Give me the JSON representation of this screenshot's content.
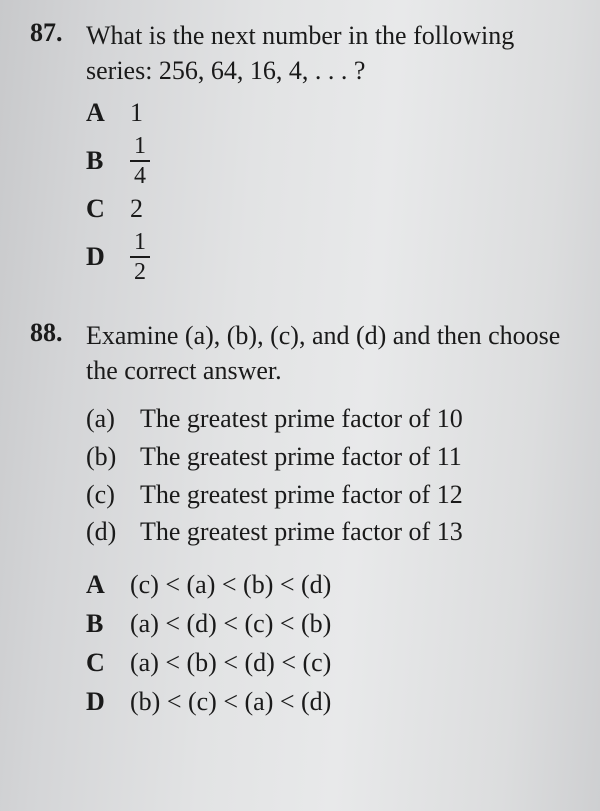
{
  "q87": {
    "number": "87.",
    "text": "What is the next number in the following series: 256, 64, 16, 4, . . . ?",
    "options": {
      "A": {
        "letter": "A",
        "type": "plain",
        "value": "1"
      },
      "B": {
        "letter": "B",
        "type": "fraction",
        "num": "1",
        "den": "4"
      },
      "C": {
        "letter": "C",
        "type": "plain",
        "value": "2"
      },
      "D": {
        "letter": "D",
        "type": "fraction",
        "num": "1",
        "den": "2"
      }
    }
  },
  "q88": {
    "number": "88.",
    "text": "Examine (a), (b), (c), and (d) and then choose the correct answer.",
    "subitems": {
      "a": {
        "label": "(a)",
        "text": "The greatest prime factor of 10"
      },
      "b": {
        "label": "(b)",
        "text": "The greatest prime factor of 11"
      },
      "c": {
        "label": "(c)",
        "text": "The greatest prime factor of 12"
      },
      "d": {
        "label": "(d)",
        "text": "The greatest prime factor of 13"
      }
    },
    "answers": {
      "A": {
        "letter": "A",
        "expr": "(c) < (a) < (b) < (d)"
      },
      "B": {
        "letter": "B",
        "expr": "(a) < (d) < (c) < (b)"
      },
      "C": {
        "letter": "C",
        "expr": "(a) < (b) < (d) < (c)"
      },
      "D": {
        "letter": "D",
        "expr": "(b) < (c) < (a) < (d)"
      }
    }
  }
}
